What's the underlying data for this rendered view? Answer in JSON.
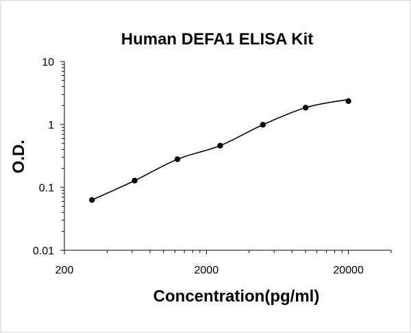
{
  "chart_data": {
    "type": "scatter",
    "title": "Human DEFA1 ELISA Kit",
    "xlabel": "Concentration(pg/ml)",
    "ylabel": "O.D.",
    "x_scale": "log",
    "y_scale": "log",
    "xlim": [
      200,
      40000
    ],
    "ylim": [
      0.01,
      10
    ],
    "x_ticks": [
      "200",
      "2000",
      "20000"
    ],
    "y_ticks": [
      "0.01",
      "0.1",
      "1",
      "10"
    ],
    "grid": false,
    "legend": "none",
    "trendline": "smooth",
    "colors": {
      "points": "#000000",
      "line": "#000000",
      "axis": "#000000"
    },
    "series": [
      {
        "x": [
          312.5,
          625,
          1250,
          2500,
          5000,
          10000,
          20000
        ],
        "y": [
          0.063,
          0.128,
          0.28,
          0.46,
          0.99,
          1.85,
          2.35
        ]
      }
    ]
  }
}
